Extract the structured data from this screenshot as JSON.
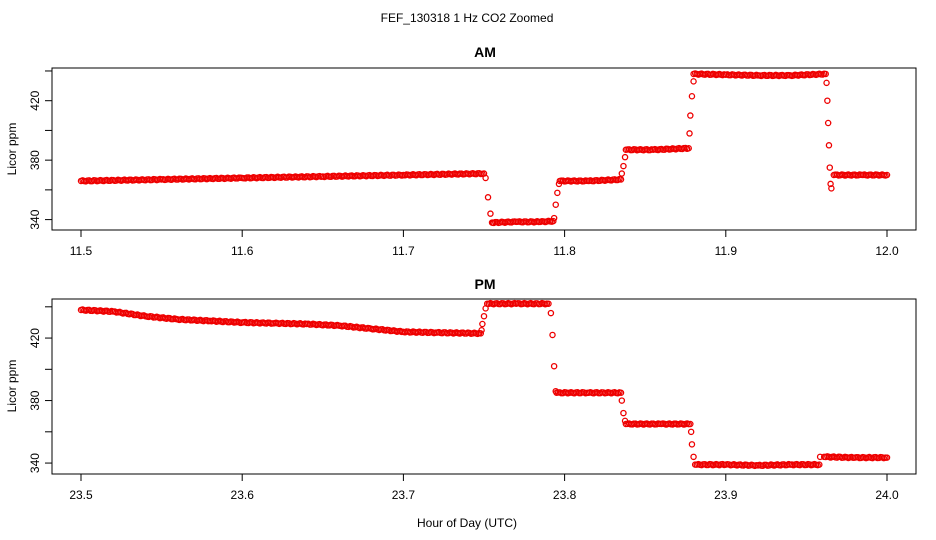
{
  "figure": {
    "title": "FEF_130318  1 Hz CO2 Zoomed",
    "xlabel": "Hour of Day (UTC)",
    "point_color": "#ee0000"
  },
  "chart_data": [
    {
      "type": "scatter",
      "title": "AM",
      "ylabel": "Licor ppm",
      "xlim": [
        11.5,
        12.0
      ],
      "ylim": [
        333,
        442
      ],
      "xticks": [
        "11.5",
        "11.6",
        "11.7",
        "11.8",
        "11.9",
        "12.0"
      ],
      "yticks": [
        "340",
        "380",
        "420"
      ],
      "series": [
        {
          "points": [
            [
              11.5,
              366
            ],
            [
              11.55,
              367
            ],
            [
              11.6,
              368
            ],
            [
              11.65,
              369
            ],
            [
              11.7,
              370
            ],
            [
              11.75,
              371
            ],
            [
              11.751,
              368
            ],
            [
              11.7525,
              355
            ],
            [
              11.754,
              344
            ],
            [
              11.7555,
              338
            ],
            [
              11.755,
              338
            ],
            [
              11.77,
              338.5
            ],
            [
              11.785,
              338.5
            ],
            [
              11.793,
              339
            ],
            [
              11.7935,
              341
            ],
            [
              11.7945,
              350
            ],
            [
              11.7955,
              358
            ],
            [
              11.7965,
              364
            ],
            [
              11.797,
              366
            ],
            [
              11.815,
              366
            ],
            [
              11.835,
              367
            ],
            [
              11.8355,
              371
            ],
            [
              11.8365,
              376
            ],
            [
              11.8375,
              382
            ],
            [
              11.838,
              387
            ],
            [
              11.855,
              387
            ],
            [
              11.877,
              388
            ],
            [
              11.8775,
              398
            ],
            [
              11.878,
              410
            ],
            [
              11.879,
              423
            ],
            [
              11.88,
              433
            ],
            [
              11.88,
              438
            ],
            [
              11.9,
              437.5
            ],
            [
              11.92,
              437
            ],
            [
              11.94,
              437
            ],
            [
              11.962,
              438
            ],
            [
              11.9625,
              432
            ],
            [
              11.963,
              420
            ],
            [
              11.9635,
              405
            ],
            [
              11.964,
              390
            ],
            [
              11.9645,
              375
            ],
            [
              11.965,
              364
            ],
            [
              11.9655,
              361
            ],
            [
              11.967,
              370
            ],
            [
              11.985,
              370
            ],
            [
              12.0,
              370
            ]
          ]
        }
      ]
    },
    {
      "type": "scatter",
      "title": "PM",
      "ylabel": "Licor ppm",
      "xlim": [
        23.5,
        24.0
      ],
      "ylim": [
        333,
        445
      ],
      "xticks": [
        "23.5",
        "23.6",
        "23.7",
        "23.8",
        "23.9",
        "24.0"
      ],
      "yticks": [
        "340",
        "380",
        "420"
      ],
      "series": [
        {
          "points": [
            [
              23.5,
              438
            ],
            [
              23.52,
              437
            ],
            [
              23.54,
              434
            ],
            [
              23.56,
              432
            ],
            [
              23.58,
              431
            ],
            [
              23.6,
              430
            ],
            [
              23.62,
              429.5
            ],
            [
              23.64,
              429
            ],
            [
              23.66,
              428
            ],
            [
              23.68,
              426
            ],
            [
              23.7,
              424
            ],
            [
              23.72,
              423.5
            ],
            [
              23.748,
              423
            ],
            [
              23.7485,
              425
            ],
            [
              23.749,
              429
            ],
            [
              23.75,
              434
            ],
            [
              23.751,
              439
            ],
            [
              23.752,
              442
            ],
            [
              23.77,
              442
            ],
            [
              23.79,
              442
            ],
            [
              23.7915,
              436
            ],
            [
              23.7925,
              422
            ],
            [
              23.7935,
              402
            ],
            [
              23.7945,
              386
            ],
            [
              23.795,
              385
            ],
            [
              23.815,
              385
            ],
            [
              23.835,
              385
            ],
            [
              23.8355,
              380
            ],
            [
              23.8365,
              372
            ],
            [
              23.8375,
              367
            ],
            [
              23.838,
              365
            ],
            [
              23.86,
              365
            ],
            [
              23.878,
              365
            ],
            [
              23.8785,
              360
            ],
            [
              23.879,
              352
            ],
            [
              23.88,
              344
            ],
            [
              23.881,
              339
            ],
            [
              23.9,
              339
            ],
            [
              23.92,
              338.5
            ],
            [
              23.94,
              339
            ],
            [
              23.958,
              339
            ],
            [
              23.9585,
              344
            ],
            [
              23.961,
              344
            ],
            [
              23.98,
              343.5
            ],
            [
              24.0,
              343.5
            ]
          ]
        }
      ]
    }
  ]
}
